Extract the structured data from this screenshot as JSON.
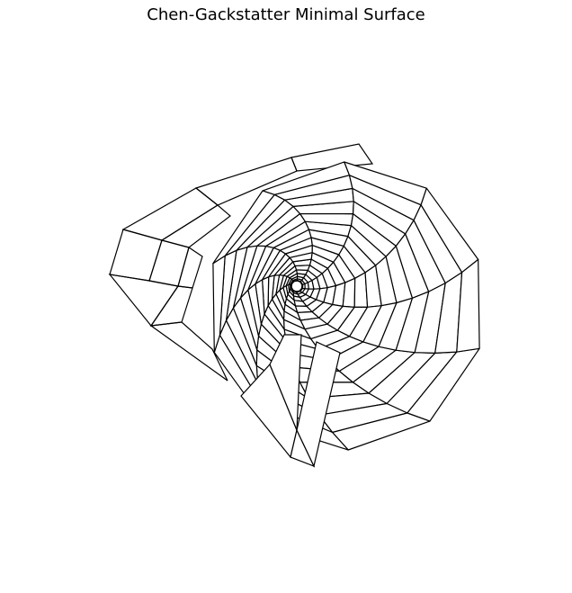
{
  "chart_data": {
    "type": "wireframe",
    "title": "Chen-Gackstatter Minimal Surface",
    "surface": "Chen-Gackstatter",
    "axes_visible": false,
    "grid": false,
    "line_color": "#000000",
    "background": "#ffffff"
  }
}
